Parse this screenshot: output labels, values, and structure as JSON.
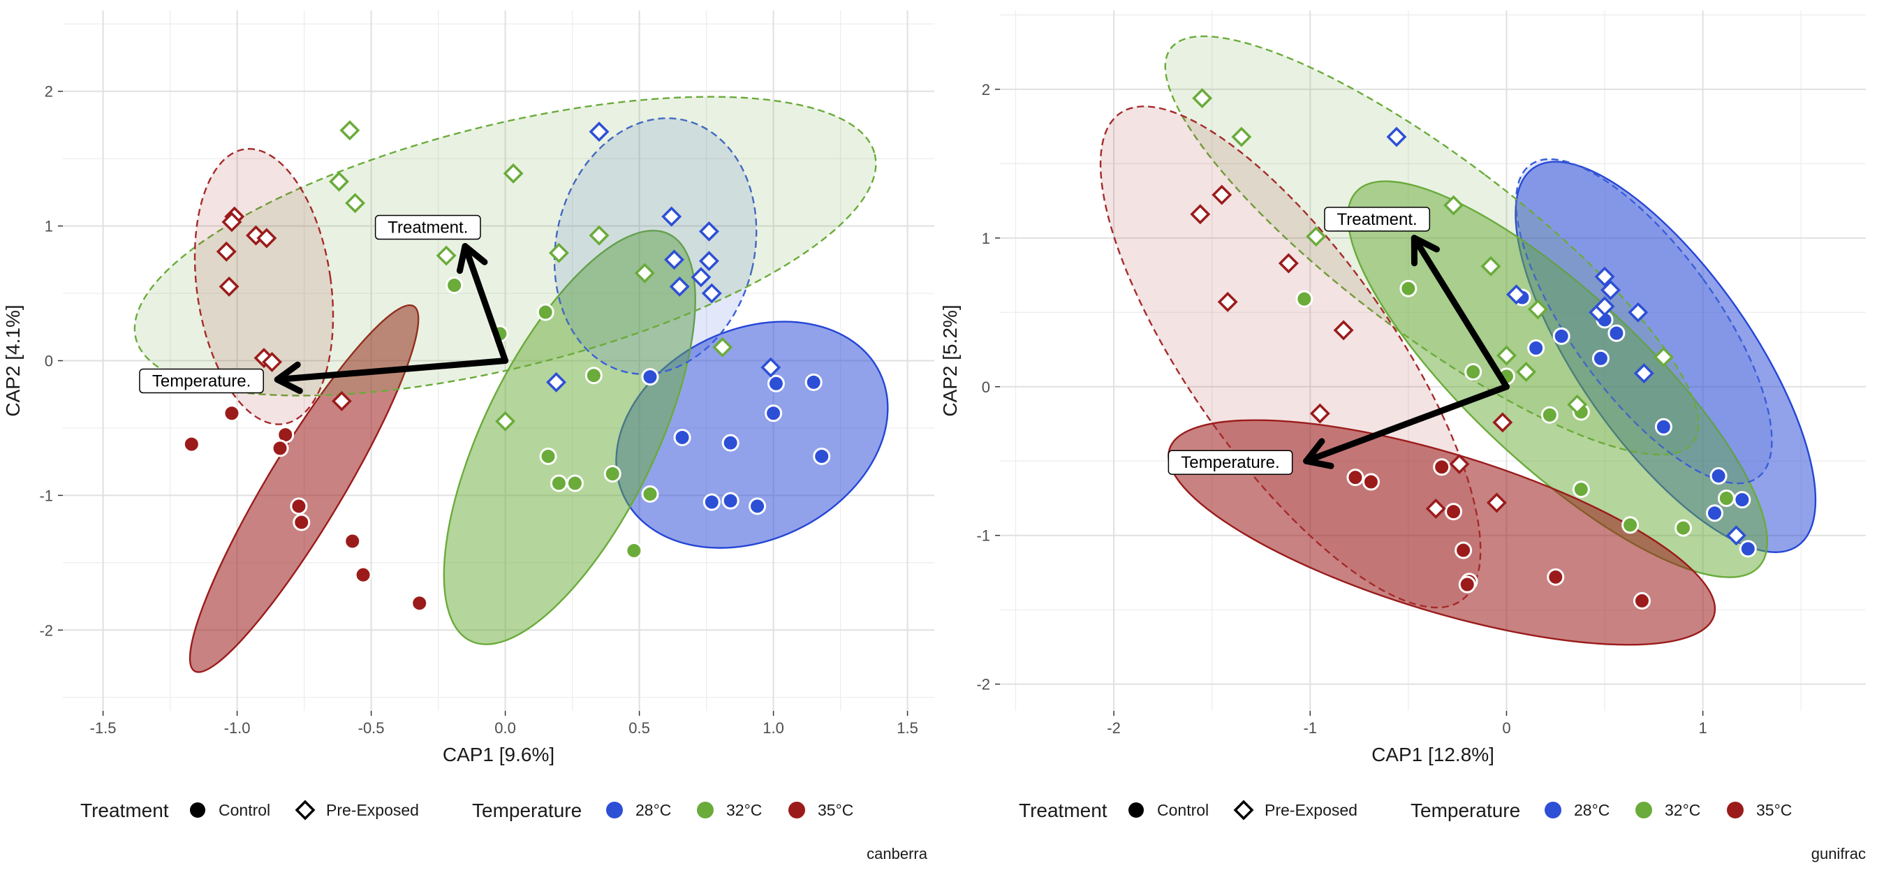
{
  "chart_data": [
    {
      "type": "scatter",
      "caption": "canberra",
      "xlabel": "CAP1 [9.6%]",
      "ylabel": "CAP2 [4.1%]",
      "xlim": [
        -1.65,
        1.6
      ],
      "ylim": [
        -2.6,
        2.6
      ],
      "xticks": [
        -1.5,
        -1.0,
        -0.5,
        0.0,
        0.5,
        1.0,
        1.5
      ],
      "xtick_labels": [
        "-1.5",
        "-1.0",
        "-0.5",
        "0.0",
        "0.5",
        "1.0",
        "1.5"
      ],
      "yticks": [
        -2,
        -1,
        0,
        1,
        2
      ],
      "ytick_labels": [
        "-2",
        "-1",
        "0",
        "1",
        "2"
      ],
      "grid": true,
      "arrows": [
        {
          "label": "Treatment.",
          "x0": 0.0,
          "y0": 0.0,
          "x1": -0.15,
          "y1": 0.85
        },
        {
          "label": "Temperature.",
          "x0": 0.0,
          "y0": 0.0,
          "x1": -0.85,
          "y1": -0.14
        }
      ],
      "ellipses": [
        {
          "group": "28°C Control",
          "cx": 0.92,
          "cy": -0.55,
          "rx": 0.53,
          "ry": 0.78,
          "angle": -26,
          "fill": "#2445d6",
          "fill_opacity": 0.5,
          "dashed": false
        },
        {
          "group": "32°C Control",
          "cx": 0.24,
          "cy": -0.57,
          "rx": 0.32,
          "ry": 1.68,
          "angle": 26,
          "fill": "#6aab3a",
          "fill_opacity": 0.5,
          "dashed": false
        },
        {
          "group": "35°C Control",
          "cx": -0.75,
          "cy": -0.95,
          "rx": 0.14,
          "ry": 1.58,
          "angle": 31,
          "fill": "#9b1b1b",
          "fill_opacity": 0.55,
          "dashed": false
        },
        {
          "group": "28°C Pre-Exposed",
          "cx": 0.56,
          "cy": 0.85,
          "rx": 0.37,
          "ry": 0.96,
          "angle": 13,
          "fill": "#3a5ed8",
          "fill_opacity": 0.15,
          "dashed": true
        },
        {
          "group": "32°C Pre-Exposed",
          "cx": 0.0,
          "cy": 0.85,
          "rx": 1.42,
          "ry": 0.9,
          "angle": -14,
          "fill": "#6aab3a",
          "fill_opacity": 0.15,
          "dashed": true
        },
        {
          "group": "35°C Pre-Exposed",
          "cx": -0.9,
          "cy": 0.55,
          "rx": 0.25,
          "ry": 1.03,
          "angle": -8,
          "fill": "#a52a2a",
          "fill_opacity": 0.13,
          "dashed": true
        }
      ],
      "series": [
        {
          "name": "28°C Control",
          "temperature": "28°C",
          "treatment": "Control",
          "color": "#2d4fd6",
          "shape": "circle",
          "points": [
            [
              0.54,
              -0.12
            ],
            [
              0.66,
              -0.57
            ],
            [
              0.84,
              -0.61
            ],
            [
              0.77,
              -1.05
            ],
            [
              0.84,
              -1.04
            ],
            [
              0.94,
              -1.08
            ],
            [
              1.0,
              -0.39
            ],
            [
              1.01,
              -0.17
            ],
            [
              1.15,
              -0.16
            ],
            [
              1.18,
              -0.71
            ]
          ]
        },
        {
          "name": "28°C Pre-Exposed",
          "temperature": "28°C",
          "treatment": "Pre-Exposed",
          "color": "#2d4fd6",
          "shape": "diamond",
          "points": [
            [
              0.35,
              1.7
            ],
            [
              0.62,
              1.07
            ],
            [
              0.76,
              0.96
            ],
            [
              0.63,
              0.75
            ],
            [
              0.76,
              0.74
            ],
            [
              0.65,
              0.55
            ],
            [
              0.73,
              0.62
            ],
            [
              0.77,
              0.5
            ],
            [
              0.99,
              -0.05
            ],
            [
              0.19,
              -0.16
            ]
          ]
        },
        {
          "name": "32°C Control",
          "temperature": "32°C",
          "treatment": "Control",
          "color": "#6aab3a",
          "shape": "circle",
          "points": [
            [
              -0.19,
              0.56
            ],
            [
              -0.02,
              0.2
            ],
            [
              0.15,
              0.36
            ],
            [
              0.33,
              -0.11
            ],
            [
              0.16,
              -0.71
            ],
            [
              0.2,
              -0.91
            ],
            [
              0.26,
              -0.91
            ],
            [
              0.4,
              -0.84
            ],
            [
              0.54,
              -0.99
            ],
            [
              0.48,
              -1.41
            ]
          ]
        },
        {
          "name": "32°C Pre-Exposed",
          "temperature": "32°C",
          "treatment": "Pre-Exposed",
          "color": "#6aab3a",
          "shape": "diamond",
          "points": [
            [
              -0.58,
              1.71
            ],
            [
              -0.62,
              1.33
            ],
            [
              -0.56,
              1.17
            ],
            [
              0.03,
              1.39
            ],
            [
              -0.22,
              0.78
            ],
            [
              0.2,
              0.8
            ],
            [
              0.35,
              0.93
            ],
            [
              0.52,
              0.65
            ],
            [
              0.81,
              0.1
            ],
            [
              0.0,
              -0.45
            ]
          ]
        },
        {
          "name": "35°C Control",
          "temperature": "35°C",
          "treatment": "Control",
          "color": "#9b1b1b",
          "shape": "circle",
          "points": [
            [
              -1.17,
              -0.62
            ],
            [
              -1.02,
              -0.39
            ],
            [
              -0.82,
              -0.55
            ],
            [
              -0.84,
              -0.65
            ],
            [
              -0.77,
              -1.08
            ],
            [
              -0.76,
              -1.2
            ],
            [
              -0.57,
              -1.34
            ],
            [
              -0.53,
              -1.59
            ],
            [
              -0.32,
              -1.8
            ]
          ]
        },
        {
          "name": "35°C Pre-Exposed",
          "temperature": "35°C",
          "treatment": "Pre-Exposed",
          "color": "#9b1b1b",
          "shape": "diamond",
          "points": [
            [
              -1.01,
              1.07
            ],
            [
              -1.02,
              1.03
            ],
            [
              -0.93,
              0.93
            ],
            [
              -0.89,
              0.91
            ],
            [
              -1.04,
              0.81
            ],
            [
              -1.03,
              0.55
            ],
            [
              -0.9,
              0.02
            ],
            [
              -0.87,
              -0.01
            ],
            [
              -0.61,
              -0.3
            ]
          ]
        }
      ]
    },
    {
      "type": "scatter",
      "caption": "gunifrac",
      "xlabel": "CAP1 [12.8%]",
      "ylabel": "CAP2 [5.2%]",
      "xlim": [
        -2.58,
        1.83
      ],
      "ylim": [
        -2.18,
        2.53
      ],
      "xticks": [
        -2,
        -1,
        0,
        1
      ],
      "xtick_labels": [
        "-2",
        "-1",
        "0",
        "1"
      ],
      "yticks": [
        -2,
        -1,
        0,
        1,
        2
      ],
      "ytick_labels": [
        "-2",
        "-1",
        "0",
        "1",
        "2"
      ],
      "grid": true,
      "arrows": [
        {
          "label": "Treatment.",
          "x0": 0.0,
          "y0": 0.0,
          "x1": -0.47,
          "y1": 1.0
        },
        {
          "label": "Temperature.",
          "x0": 0.0,
          "y0": 0.0,
          "x1": -1.02,
          "y1": -0.5
        }
      ],
      "ellipses": [
        {
          "group": "28°C Control",
          "cx": 0.81,
          "cy": 0.2,
          "rx": 0.44,
          "ry": 1.55,
          "angle": -35,
          "fill": "#2445d6",
          "fill_opacity": 0.5,
          "dashed": false
        },
        {
          "group": "32°C Control",
          "cx": 0.26,
          "cy": 0.05,
          "rx": 0.44,
          "ry": 1.85,
          "angle": -47,
          "fill": "#6aab3a",
          "fill_opacity": 0.5,
          "dashed": false
        },
        {
          "group": "35°C Control",
          "cx": -0.33,
          "cy": -0.98,
          "rx": 1.45,
          "ry": 0.53,
          "angle": 17,
          "fill": "#9b1b1b",
          "fill_opacity": 0.55,
          "dashed": false
        },
        {
          "group": "28°C Pre-Exposed",
          "cx": 0.7,
          "cy": 0.44,
          "rx": 0.37,
          "ry": 1.3,
          "angle": -36,
          "fill": "#3a5ed8",
          "fill_opacity": 0.15,
          "dashed": true
        },
        {
          "group": "32°C Pre-Exposed",
          "cx": -0.38,
          "cy": 0.95,
          "rx": 0.45,
          "ry": 2.2,
          "angle": -53,
          "fill": "#6aab3a",
          "fill_opacity": 0.15,
          "dashed": true
        },
        {
          "group": "35°C Pre-Exposed",
          "cx": -1.1,
          "cy": 0.2,
          "rx": 0.52,
          "ry": 2.0,
          "angle": -35,
          "fill": "#a52a2a",
          "fill_opacity": 0.13,
          "dashed": true
        }
      ],
      "series": [
        {
          "name": "28°C Control",
          "temperature": "28°C",
          "treatment": "Control",
          "color": "#2d4fd6",
          "shape": "circle",
          "points": [
            [
              0.08,
              0.6
            ],
            [
              0.15,
              0.26
            ],
            [
              0.28,
              0.34
            ],
            [
              0.5,
              0.45
            ],
            [
              0.56,
              0.36
            ],
            [
              0.48,
              0.19
            ],
            [
              0.8,
              -0.27
            ],
            [
              1.08,
              -0.6
            ],
            [
              1.06,
              -0.85
            ],
            [
              1.2,
              -0.76
            ],
            [
              1.23,
              -1.09
            ]
          ]
        },
        {
          "name": "28°C Pre-Exposed",
          "temperature": "28°C",
          "treatment": "Pre-Exposed",
          "color": "#2d4fd6",
          "shape": "diamond",
          "points": [
            [
              -0.56,
              1.68
            ],
            [
              0.05,
              0.62
            ],
            [
              0.47,
              0.5
            ],
            [
              0.5,
              0.54
            ],
            [
              0.5,
              0.74
            ],
            [
              0.53,
              0.65
            ],
            [
              0.67,
              0.5
            ],
            [
              0.7,
              0.09
            ],
            [
              1.17,
              -1.0
            ]
          ]
        },
        {
          "name": "32°C Control",
          "temperature": "32°C",
          "treatment": "Control",
          "color": "#6aab3a",
          "shape": "circle",
          "points": [
            [
              -1.03,
              0.59
            ],
            [
              -0.5,
              0.66
            ],
            [
              -0.17,
              0.1
            ],
            [
              0.0,
              0.07
            ],
            [
              0.22,
              -0.19
            ],
            [
              0.38,
              -0.17
            ],
            [
              0.38,
              -0.69
            ],
            [
              0.63,
              -0.93
            ],
            [
              0.9,
              -0.95
            ],
            [
              1.12,
              -0.75
            ]
          ]
        },
        {
          "name": "32°C Pre-Exposed",
          "temperature": "32°C",
          "treatment": "Pre-Exposed",
          "color": "#6aab3a",
          "shape": "diamond",
          "points": [
            [
              -1.55,
              1.94
            ],
            [
              -1.35,
              1.68
            ],
            [
              -0.97,
              1.01
            ],
            [
              -0.27,
              1.22
            ],
            [
              -0.08,
              0.81
            ],
            [
              0.16,
              0.52
            ],
            [
              0.0,
              0.21
            ],
            [
              0.1,
              0.1
            ],
            [
              0.36,
              -0.12
            ],
            [
              0.8,
              0.2
            ]
          ]
        },
        {
          "name": "35°C Control",
          "temperature": "35°C",
          "treatment": "Control",
          "color": "#9b1b1b",
          "shape": "circle",
          "points": [
            [
              -0.77,
              -0.61
            ],
            [
              -0.69,
              -0.64
            ],
            [
              -0.33,
              -0.54
            ],
            [
              -0.27,
              -0.84
            ],
            [
              -0.22,
              -1.1
            ],
            [
              -0.19,
              -1.31
            ],
            [
              -0.2,
              -1.33
            ],
            [
              0.25,
              -1.28
            ],
            [
              0.69,
              -1.44
            ]
          ]
        },
        {
          "name": "35°C Pre-Exposed",
          "temperature": "35°C",
          "treatment": "Pre-Exposed",
          "color": "#9b1b1b",
          "shape": "diamond",
          "points": [
            [
              -1.45,
              1.29
            ],
            [
              -1.56,
              1.16
            ],
            [
              -1.11,
              0.83
            ],
            [
              -1.42,
              0.57
            ],
            [
              -0.83,
              0.38
            ],
            [
              -0.95,
              -0.18
            ],
            [
              -0.24,
              -0.52
            ],
            [
              -0.36,
              -0.82
            ],
            [
              -0.05,
              -0.78
            ],
            [
              -0.02,
              -0.24
            ]
          ]
        }
      ]
    }
  ],
  "legend": {
    "treatment_title": "Treatment",
    "treatment_items": [
      {
        "label": "Control",
        "shape": "circle"
      },
      {
        "label": "Pre-Exposed",
        "shape": "diamond"
      }
    ],
    "temperature_title": "Temperature",
    "temperature_items": [
      {
        "label": "28°C",
        "color": "#2d4fd6"
      },
      {
        "label": "32°C",
        "color": "#6aab3a"
      },
      {
        "label": "35°C",
        "color": "#9b1b1b"
      }
    ]
  }
}
